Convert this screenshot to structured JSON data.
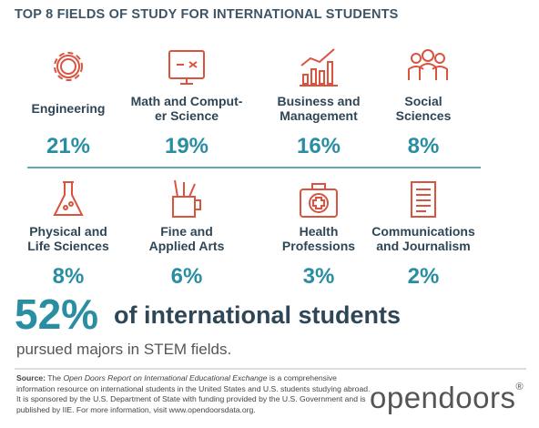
{
  "title": "TOP 8 FIELDS OF STUDY FOR INTERNATIONAL STUDENTS",
  "fields": [
    {
      "label": [
        "Engineering"
      ],
      "percent": "21%"
    },
    {
      "label": [
        "Math and Comput-",
        "er Science"
      ],
      "percent": "19%"
    },
    {
      "label": [
        "Business and",
        "Management"
      ],
      "percent": "16%"
    },
    {
      "label": [
        "Social",
        "Sciences"
      ],
      "percent": "8%"
    },
    {
      "label": [
        "Physical and",
        "Life Sciences"
      ],
      "percent": "8%"
    },
    {
      "label": [
        "Fine and",
        "Applied Arts"
      ],
      "percent": "6%"
    },
    {
      "label": [
        "Health",
        "Professions"
      ],
      "percent": "3%"
    },
    {
      "label": [
        "Communications",
        "and Journalism"
      ],
      "percent": "2%"
    }
  ],
  "stem": {
    "percent": "52%",
    "headline": "of international students",
    "subline": "pursued majors in STEM fields."
  },
  "source": {
    "label": "Source:",
    "text_1": " The ",
    "italic": "Open Doors Report on International Educational Exchange",
    "text_2": " is a comprehensive information resource on international students in the United States and U.S. students studying abroad. It is sponsored by the U.S. Department of State with funding provided by the U.S. Government and is published by IIE. For more information, visit www.opendoorsdata.org."
  },
  "logo": {
    "name": "opendoors",
    "mark": "®"
  }
}
